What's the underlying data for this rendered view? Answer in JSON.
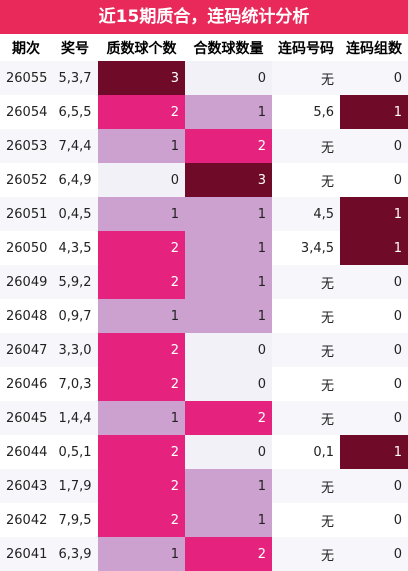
{
  "title": "近15期质合，连码统计分析",
  "headers": [
    "期次",
    "奖号",
    "质数球个数",
    "合数球数量",
    "连码号码",
    "连码组数"
  ],
  "colors": {
    "title_bg": "#e8295a",
    "row_a": "#f7f6fb",
    "row_b": "#ffffff",
    "zero": "#f3f1f8",
    "one": "#cca0cf",
    "two": "#e5237e",
    "three": "#6f0a28"
  },
  "rows": [
    {
      "issue": "26055",
      "nums": "5,3,7",
      "prime": 3,
      "composite": 0,
      "lian": "无",
      "groups": 0
    },
    {
      "issue": "26054",
      "nums": "6,5,5",
      "prime": 2,
      "composite": 1,
      "lian": "5,6",
      "groups": 1
    },
    {
      "issue": "26053",
      "nums": "7,4,4",
      "prime": 1,
      "composite": 2,
      "lian": "无",
      "groups": 0
    },
    {
      "issue": "26052",
      "nums": "6,4,9",
      "prime": 0,
      "composite": 3,
      "lian": "无",
      "groups": 0
    },
    {
      "issue": "26051",
      "nums": "0,4,5",
      "prime": 1,
      "composite": 1,
      "lian": "4,5",
      "groups": 1
    },
    {
      "issue": "26050",
      "nums": "4,3,5",
      "prime": 2,
      "composite": 1,
      "lian": "3,4,5",
      "groups": 1
    },
    {
      "issue": "26049",
      "nums": "5,9,2",
      "prime": 2,
      "composite": 1,
      "lian": "无",
      "groups": 0
    },
    {
      "issue": "26048",
      "nums": "0,9,7",
      "prime": 1,
      "composite": 1,
      "lian": "无",
      "groups": 0
    },
    {
      "issue": "26047",
      "nums": "3,3,0",
      "prime": 2,
      "composite": 0,
      "lian": "无",
      "groups": 0
    },
    {
      "issue": "26046",
      "nums": "7,0,3",
      "prime": 2,
      "composite": 0,
      "lian": "无",
      "groups": 0
    },
    {
      "issue": "26045",
      "nums": "1,4,4",
      "prime": 1,
      "composite": 2,
      "lian": "无",
      "groups": 0
    },
    {
      "issue": "26044",
      "nums": "0,5,1",
      "prime": 2,
      "composite": 0,
      "lian": "0,1",
      "groups": 1
    },
    {
      "issue": "26043",
      "nums": "1,7,9",
      "prime": 2,
      "composite": 1,
      "lian": "无",
      "groups": 0
    },
    {
      "issue": "26042",
      "nums": "7,9,5",
      "prime": 2,
      "composite": 1,
      "lian": "无",
      "groups": 0
    },
    {
      "issue": "26041",
      "nums": "6,3,9",
      "prime": 1,
      "composite": 2,
      "lian": "无",
      "groups": 0
    }
  ]
}
